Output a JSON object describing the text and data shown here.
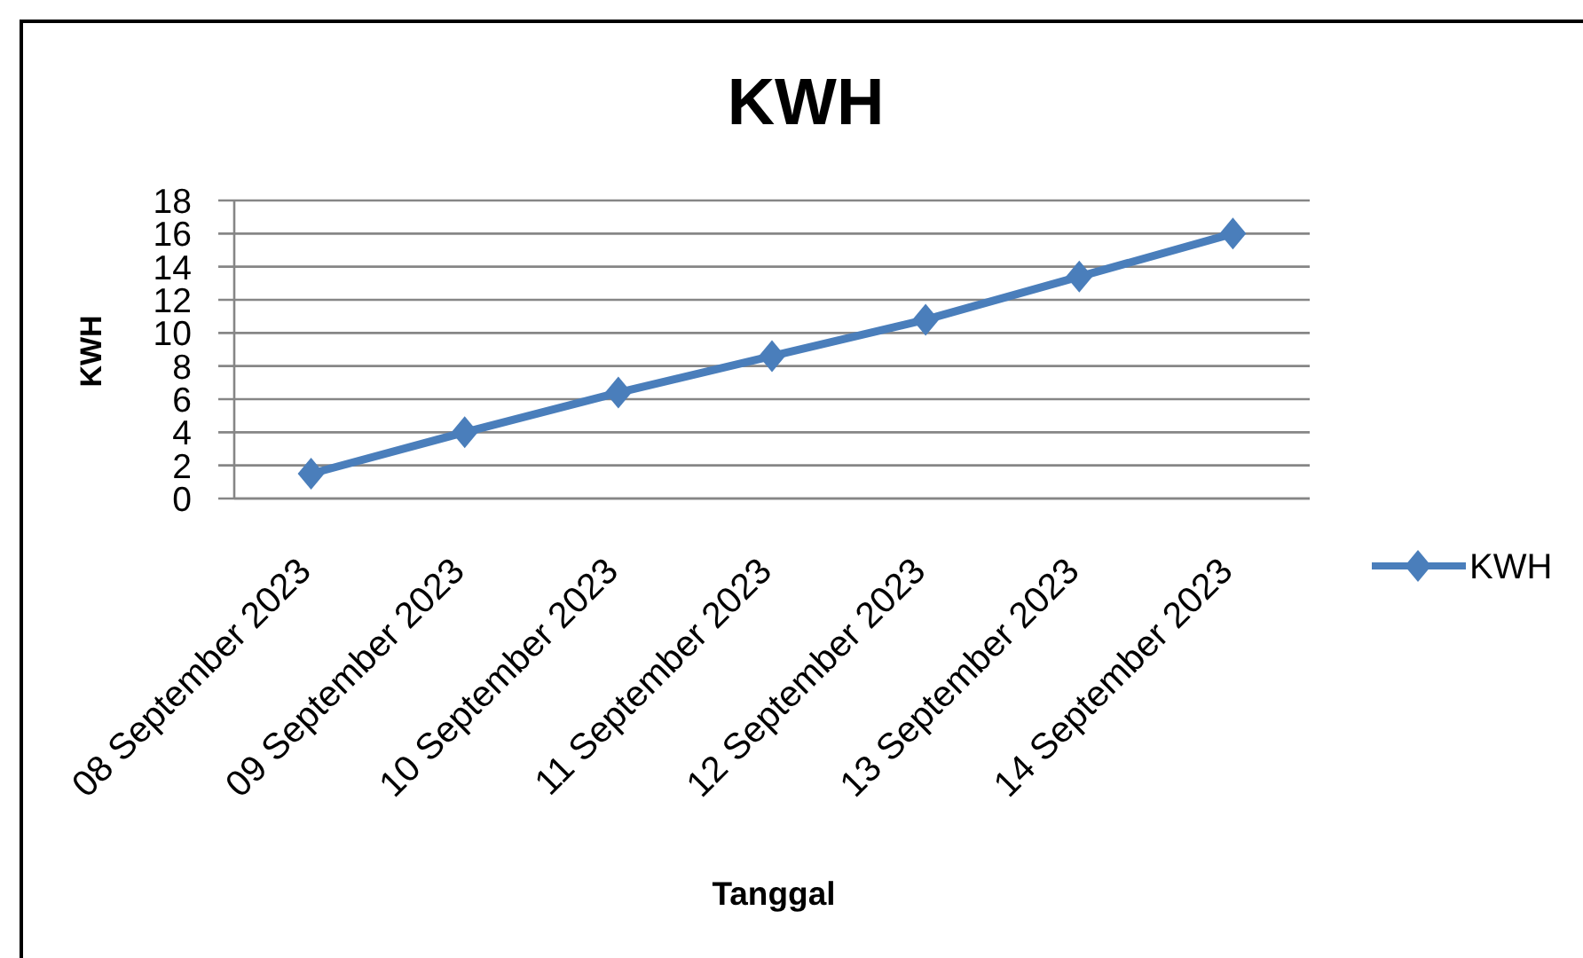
{
  "chart_data": {
    "type": "line",
    "title": "KWH",
    "xlabel": "Tanggal",
    "ylabel": "KWH",
    "categories": [
      "08 September 2023",
      "09 September 2023",
      "10 September 2023",
      "11 September 2023",
      "12 September 2023",
      "13 September 2023",
      "14 September 2023"
    ],
    "series": [
      {
        "name": "KWH",
        "color": "#4a7ebb",
        "values": [
          1.5,
          4.0,
          6.4,
          8.6,
          10.8,
          13.4,
          16.0
        ]
      }
    ],
    "ylim": [
      0,
      18
    ],
    "yticks": [
      0,
      2,
      4,
      6,
      8,
      10,
      12,
      14,
      16,
      18
    ],
    "grid": "y",
    "legend": "right",
    "marker": "diamond",
    "line_style": "solid"
  }
}
